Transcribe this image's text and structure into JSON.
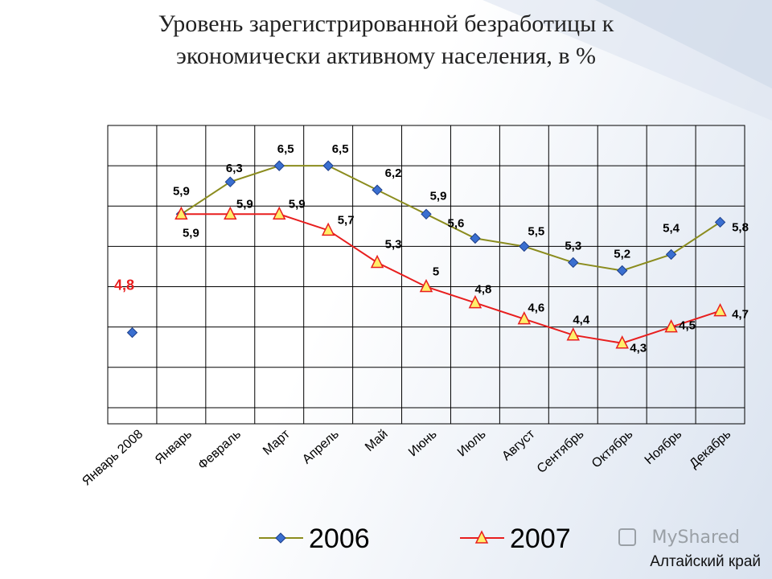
{
  "title_line1": "Уровень зарегистрированной безработицы к",
  "title_line2": "экономически активному населения, в %",
  "region_label": "Алтайский край",
  "watermark_text": "MyShared",
  "chart_data": {
    "type": "line",
    "categories": [
      "Январь 2008",
      "Январь",
      "Февраль",
      "Март",
      "Апрель",
      "Май",
      "Июнь",
      "Июль",
      "Август",
      "Сентябрь",
      "Октябрь",
      "Ноябрь",
      "Декабрь"
    ],
    "ylim": [
      3.3,
      7.0
    ],
    "grid": true,
    "legend_position": "bottom",
    "series": [
      {
        "name": "2006",
        "color": "#8b8c1e",
        "marker": "diamond",
        "marker_color": "#3a6fd0",
        "values": [
          null,
          5.9,
          6.3,
          6.5,
          6.5,
          6.2,
          5.9,
          5.6,
          5.5,
          5.3,
          5.2,
          5.4,
          5.8
        ],
        "labels": [
          "",
          "5,9",
          "6,3",
          "6,5",
          "6,5",
          "6,2",
          "5,9",
          "5,6",
          "5,5",
          "5,3",
          "5,2",
          "5,4",
          "5,8"
        ]
      },
      {
        "name": "2007",
        "color": "#e81e1e",
        "marker": "triangle",
        "marker_color": "#ffef6a",
        "values": [
          null,
          5.9,
          5.9,
          5.9,
          5.7,
          5.3,
          5.0,
          4.8,
          4.6,
          4.4,
          4.3,
          4.5,
          4.7
        ],
        "labels": [
          "",
          "5,9",
          "5,9",
          "5,9",
          "5,7",
          "5,3",
          "5",
          "4,8",
          "4,6",
          "4,4",
          "4,3",
          "4,5",
          "4,7"
        ]
      }
    ],
    "standalone_point": {
      "category": "Январь 2008",
      "value": 4.8,
      "label": "4,8",
      "label_color": "#e81e1e",
      "marker_color": "#3a6fd0"
    }
  }
}
